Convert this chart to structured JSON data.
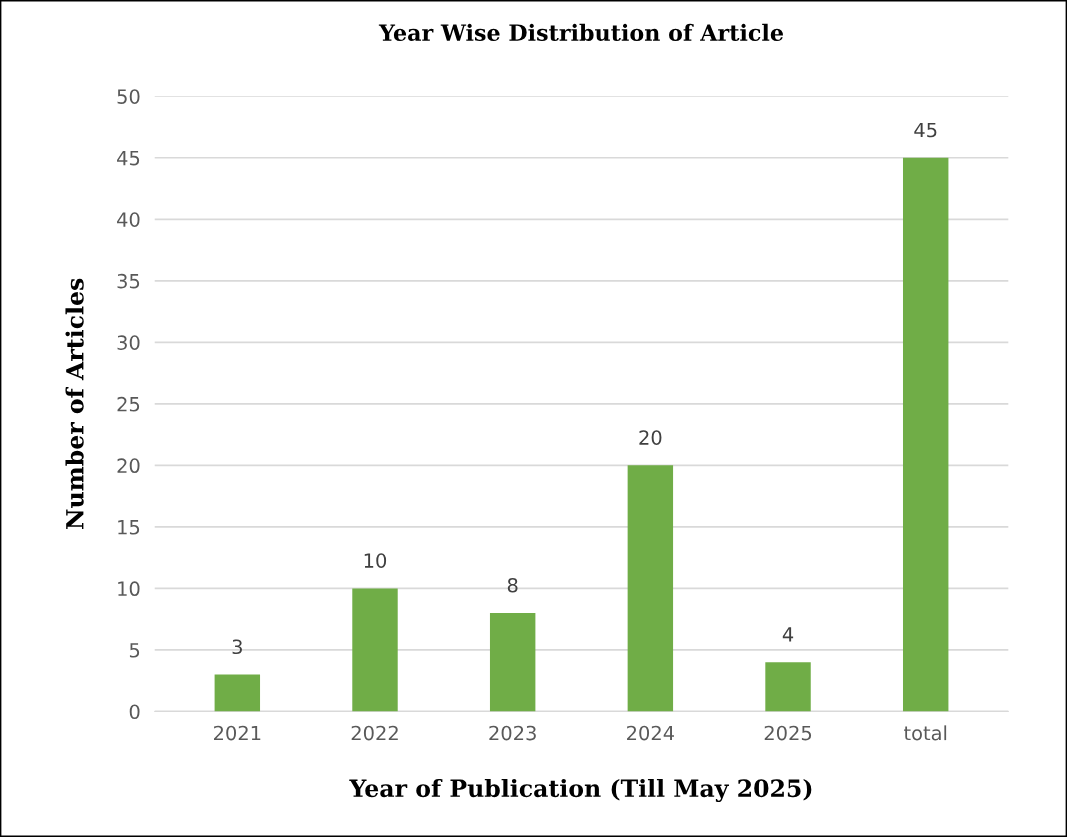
{
  "chart_data": {
    "type": "bar",
    "title": "Year Wise Distribution of Article",
    "xlabel": "Year of Publication (Till May 2025)",
    "ylabel": "Number of Articles",
    "categories": [
      "2021",
      "2022",
      "2023",
      "2024",
      "2025",
      "total"
    ],
    "values": [
      3,
      10,
      8,
      20,
      4,
      45
    ],
    "color": "#70ad47",
    "ylim": [
      0,
      50
    ],
    "yticks": [
      0,
      5,
      10,
      15,
      20,
      25,
      30,
      35,
      40,
      45,
      50
    ],
    "grid": "y",
    "data_labels": true
  }
}
